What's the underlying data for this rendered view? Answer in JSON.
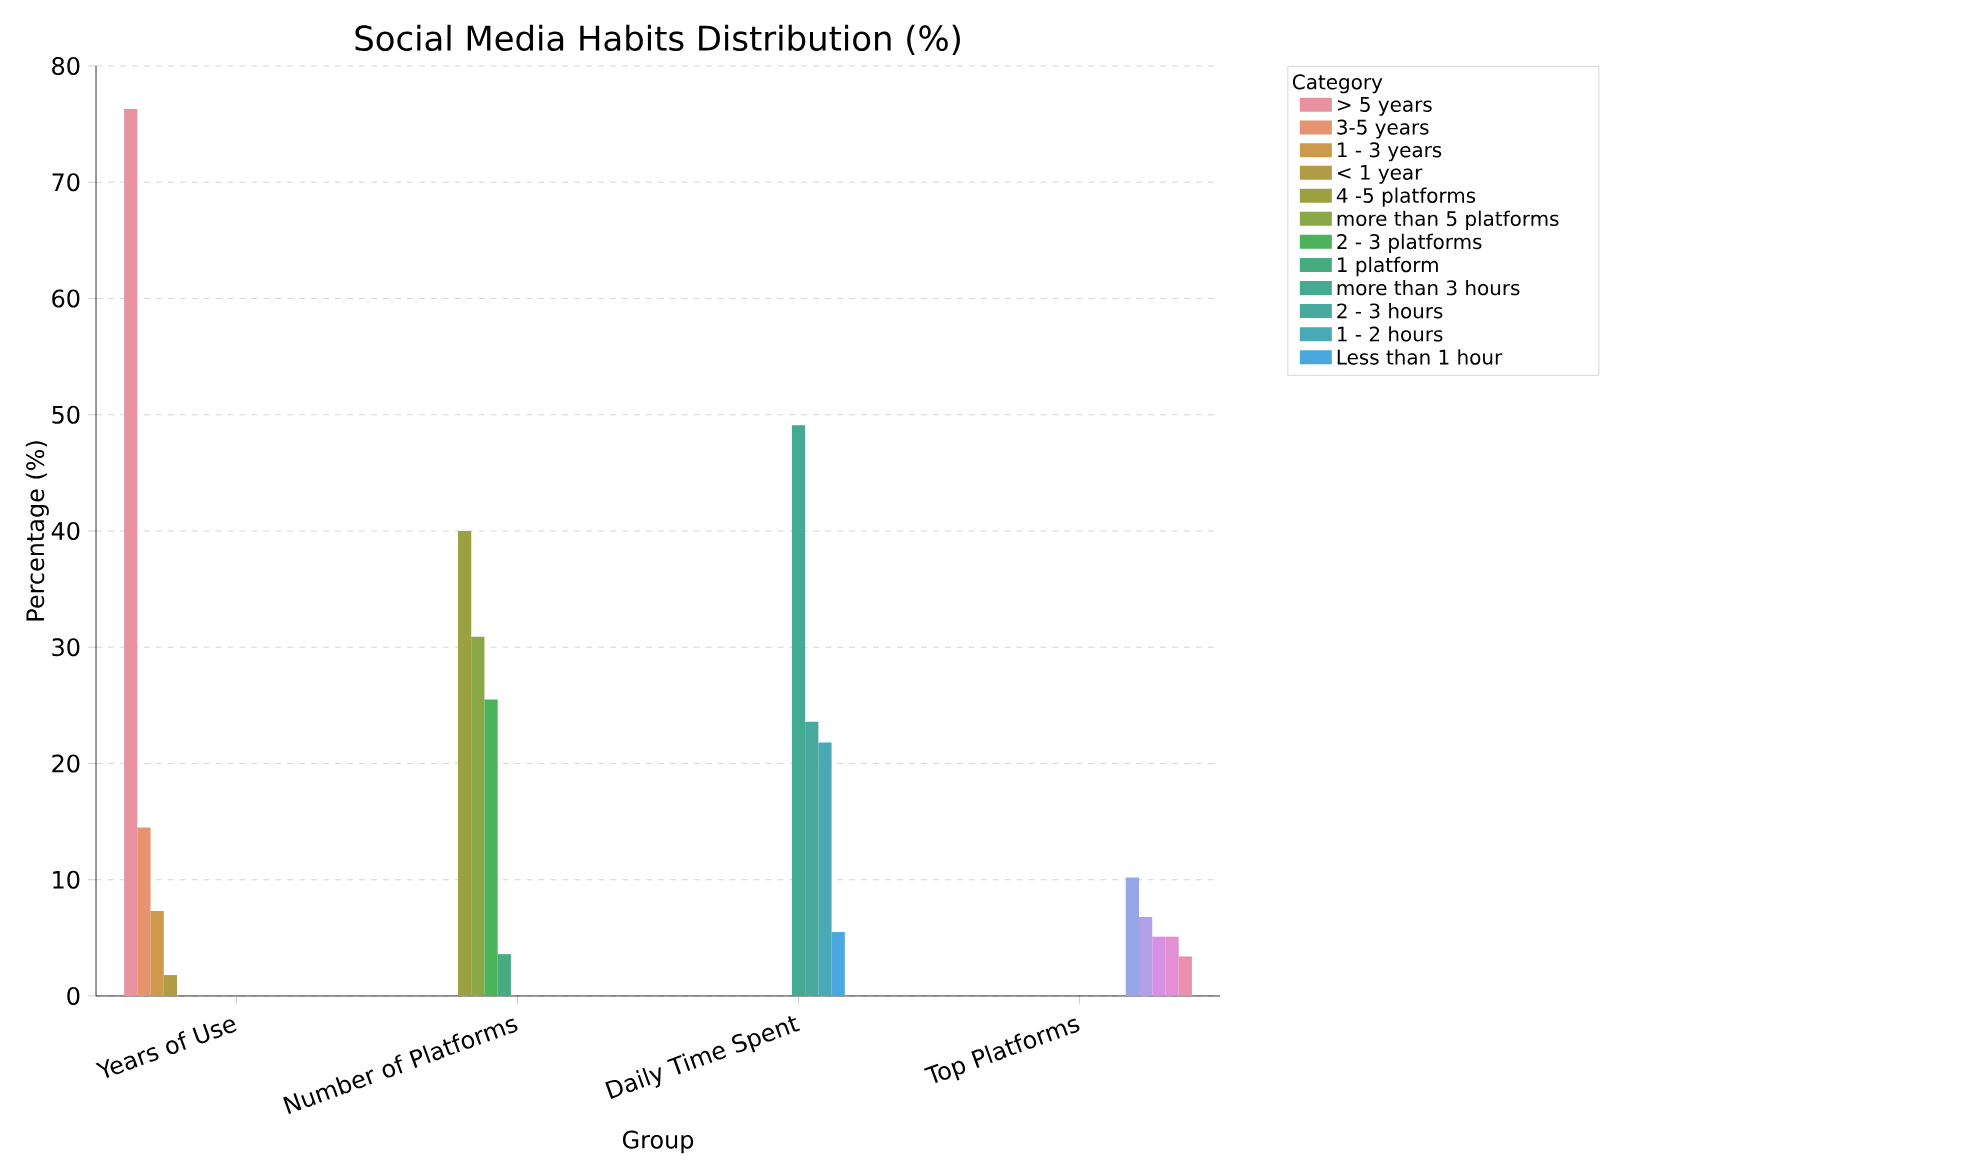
{
  "chart_data": {
    "type": "bar",
    "title": "Social Media Habits Distribution (%)",
    "xlabel": "Group",
    "ylabel": "Percentage (%)",
    "legend_title": "Category",
    "categories": [
      "Years of Use",
      "Number of Platforms",
      "Daily Time Spent",
      "Top Platforms"
    ],
    "ylim": [
      0,
      80
    ],
    "yticks": [
      0,
      10,
      20,
      30,
      40,
      50,
      60,
      70,
      80
    ],
    "grid": "y",
    "legend": "top right",
    "series": [
      {
        "name": "> 5 years",
        "color": "#e8929f",
        "values": [
          76.3,
          null,
          null,
          null
        ]
      },
      {
        "name": "3-5 years",
        "color": "#e5946f",
        "values": [
          14.5,
          null,
          null,
          null
        ]
      },
      {
        "name": "1 - 3 years",
        "color": "#cd9a4c",
        "values": [
          7.3,
          null,
          null,
          null
        ]
      },
      {
        "name": "< 1 year",
        "color": "#b19c46",
        "values": [
          1.8,
          null,
          null,
          null
        ]
      },
      {
        "name": "4 -5 platforms",
        "color": "#9ba040",
        "values": [
          null,
          40.0,
          null,
          null
        ]
      },
      {
        "name": "more than 5 platforms",
        "color": "#8aa848",
        "values": [
          null,
          30.9,
          null,
          null
        ]
      },
      {
        "name": "2 - 3 platforms",
        "color": "#4db35b",
        "values": [
          null,
          25.5,
          null,
          null
        ]
      },
      {
        "name": "1 platform",
        "color": "#46ac7f",
        "values": [
          null,
          3.6,
          null,
          null
        ]
      },
      {
        "name": "more than 3 hours",
        "color": "#45aa92",
        "values": [
          null,
          null,
          49.1,
          null
        ]
      },
      {
        "name": "2 - 3 hours",
        "color": "#48aa9f",
        "values": [
          null,
          null,
          23.6,
          null
        ]
      },
      {
        "name": "1 - 2 hours",
        "color": "#4aa9b4",
        "values": [
          null,
          null,
          21.8,
          null
        ]
      },
      {
        "name": "Less than 1 hour",
        "color": "#4aa8dc",
        "values": [
          null,
          null,
          5.5,
          null
        ]
      },
      {
        "color": "#97a6e6",
        "values": [
          null,
          null,
          null,
          10.2
        ]
      },
      {
        "color": "#b29fe8",
        "values": [
          null,
          null,
          null,
          6.8
        ]
      },
      {
        "color": "#d690e4",
        "values": [
          null,
          null,
          null,
          5.1
        ]
      },
      {
        "color": "#e38fd2",
        "values": [
          null,
          null,
          null,
          5.1
        ]
      },
      {
        "color": "#e890ac",
        "values": [
          null,
          null,
          null,
          3.4
        ]
      }
    ]
  }
}
